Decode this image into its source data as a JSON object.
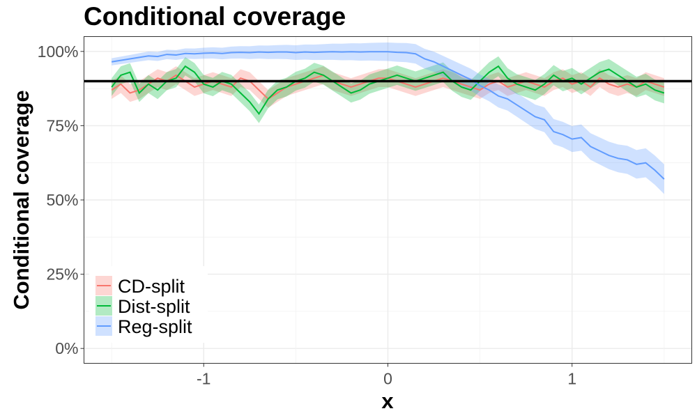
{
  "chart_data": {
    "type": "line",
    "title": "Conditional coverage",
    "xlabel": "x",
    "ylabel": "Conditional coverage",
    "xlim": [
      -1.65,
      1.65
    ],
    "ylim": [
      -0.05,
      1.05
    ],
    "xticks": [
      -1,
      0,
      1
    ],
    "xtick_labels": [
      "-1",
      "0",
      "1"
    ],
    "yticks": [
      0,
      0.25,
      0.5,
      0.75,
      1.0
    ],
    "ytick_labels": [
      "0%",
      "25%",
      "50%",
      "75%",
      "100%"
    ],
    "grid": true,
    "legend_position": "bottom-left",
    "reference_line": {
      "y": 0.9,
      "color": "#000000"
    },
    "x": {
      "start": -1.5,
      "step": 0.05,
      "count": 61
    },
    "series": [
      {
        "name": "CD-split",
        "color": "#F8766D",
        "ci_halfwidth": [
          3,
          3
        ],
        "values": [
          87,
          89,
          86,
          87,
          89,
          91,
          90,
          92,
          90,
          88,
          89,
          90,
          89,
          88,
          91,
          90,
          87,
          84,
          86,
          88,
          89,
          90,
          91,
          92,
          90,
          89,
          88,
          89,
          90,
          91,
          91,
          90,
          89,
          88,
          89,
          90,
          91,
          90,
          89,
          88,
          87,
          89,
          90,
          88,
          89,
          90,
          89,
          88,
          90,
          91,
          89,
          90,
          88,
          91,
          89,
          88,
          89,
          88,
          90,
          89,
          88
        ]
      },
      {
        "name": "Dist-split",
        "color": "#00BA38",
        "ci_halfwidth": [
          3,
          3.5
        ],
        "values": [
          88,
          92,
          93,
          86,
          89,
          87,
          90,
          91,
          95,
          93,
          89,
          88,
          90,
          89,
          86,
          83,
          79,
          84,
          87,
          88,
          90,
          91,
          93,
          92,
          90,
          88,
          86,
          87,
          89,
          90,
          91,
          92,
          91,
          90,
          91,
          92,
          93,
          90,
          88,
          87,
          90,
          93,
          95,
          91,
          89,
          88,
          87,
          89,
          92,
          90,
          91,
          89,
          91,
          93,
          94,
          92,
          90,
          88,
          89,
          87,
          86
        ]
      },
      {
        "name": "Reg-split",
        "color": "#619CFF",
        "ci_halfwidth": [
          1.2,
          5
        ],
        "values": [
          96.5,
          97,
          97.5,
          98,
          98.5,
          98.3,
          99,
          98.8,
          99.3,
          99.2,
          99.4,
          99.5,
          99.3,
          99.6,
          99.7,
          99.6,
          99.8,
          99.7,
          99.8,
          99.8,
          99.6,
          99.8,
          99.7,
          99.8,
          99.9,
          99.8,
          99.9,
          99.8,
          99.9,
          99.9,
          99.9,
          99.7,
          99.6,
          99.2,
          97.5,
          96.5,
          95,
          93.5,
          92,
          90.5,
          88.5,
          87,
          85,
          84,
          82,
          80,
          78,
          77,
          73,
          72,
          70.5,
          71,
          68,
          66.5,
          65,
          64,
          63.5,
          62,
          62.5,
          60,
          57
        ]
      }
    ]
  }
}
